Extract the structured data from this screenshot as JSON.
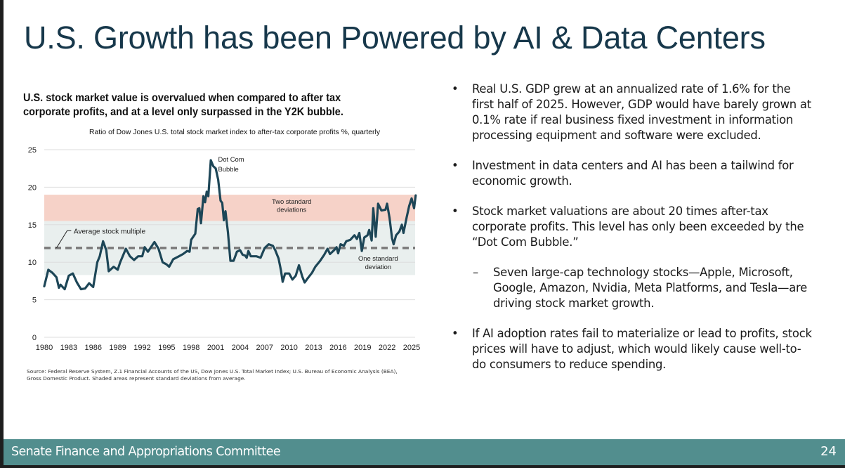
{
  "slide": {
    "title": "U.S. Growth has been Powered by AI & Data Centers",
    "footer": {
      "organization": "Senate Finance and Appropriations Committee",
      "page_number": "24"
    },
    "colors": {
      "title": "#17384b",
      "footer_bg": "#528e8e",
      "series_line": "#1d4657",
      "two_std_band": "#f6d2c8",
      "one_std_band": "#e9efee",
      "average_line": "#7a7a7a",
      "grid": "#dddddd"
    }
  },
  "chart_headline": "U.S. stock market value is overvalued when compared to after tax corporate profits, and at a level only surpassed in the Y2K bubble.",
  "chart_source": "Source: Federal Reserve System, Z.1 Financial Accounts of the US, Dow Jones U.S. Total Market Index; U.S. Bureau of Economic Analysis (BEA), Gross Domestic Product. Shaded areas represent standard deviations from average.",
  "bullets": [
    {
      "marker": "•",
      "level": 1,
      "text": "Real U.S. GDP grew at an annualized rate of 1.6% for the first half of 2025. However, GDP would have barely grown at 0.1% rate if real business fixed investment in information processing equipment and software were excluded."
    },
    {
      "marker": "•",
      "level": 1,
      "text": "Investment in data centers and AI has been a tailwind for economic growth."
    },
    {
      "marker": "•",
      "level": 1,
      "text": "Stock market valuations are about 20 times after-tax corporate profits. This level has only been exceeded by the “Dot Com Bubble.”"
    },
    {
      "marker": "–",
      "level": 2,
      "text": "Seven large-cap technology stocks—Apple, Microsoft, Google, Amazon, Nvidia, Meta Platforms, and Tesla—are driving stock market growth."
    },
    {
      "marker": "•",
      "level": 1,
      "text": "If AI adoption rates fail to materialize or lead to profits, stock prices will have to adjust, which would likely cause well-to-do consumers to reduce spending."
    }
  ],
  "chart_data": {
    "type": "line",
    "title": "Ratio of Dow Jones U.S. total stock market index to after-tax corporate profits %, quarterly",
    "xlabel": "",
    "ylabel": "",
    "xlim": [
      1980,
      2025.6
    ],
    "ylim": [
      0,
      25
    ],
    "x_ticks": [
      "1980",
      "1983",
      "1986",
      "1989",
      "1992",
      "1995",
      "1998",
      "2001",
      "2004",
      "2007",
      "2010",
      "2013",
      "2016",
      "2019",
      "2022",
      "2025"
    ],
    "y_ticks": [
      "0",
      "5",
      "10",
      "15",
      "20",
      "25"
    ],
    "grid": true,
    "average": {
      "label": "Average stock multiple",
      "value": 11.9
    },
    "bands": [
      {
        "label": "One standard deviation",
        "from": 8.3,
        "to": 15.5
      },
      {
        "label": "Two standard deviations",
        "from": 15.5,
        "to": 19.0
      }
    ],
    "annotations": [
      {
        "text": "Dot Com Bubble",
        "x": 2001.5,
        "y": 22.5
      }
    ],
    "series": [
      {
        "name": "Stock market index / after-tax corporate profits",
        "x": [
          1980.0,
          1980.5,
          1981.0,
          1981.5,
          1981.8,
          1982.0,
          1982.5,
          1983.0,
          1983.5,
          1984.0,
          1984.5,
          1985.0,
          1985.5,
          1986.0,
          1986.5,
          1986.8,
          1987.2,
          1987.6,
          1987.9,
          1988.5,
          1989.0,
          1989.3,
          1990.0,
          1990.5,
          1991.0,
          1991.5,
          1992.0,
          1992.3,
          1992.7,
          1993.5,
          1994.0,
          1994.5,
          1995.0,
          1995.3,
          1995.8,
          1996.5,
          1997.0,
          1997.5,
          1997.8,
          1998.0,
          1998.5,
          1998.8,
          1999.0,
          1999.2,
          1999.5,
          1999.7,
          1999.9,
          2000.1,
          2000.4,
          2000.7,
          2001.0,
          2001.3,
          2001.6,
          2001.8,
          2002.0,
          2002.2,
          2002.5,
          2002.8,
          2003.2,
          2003.6,
          2004.0,
          2004.3,
          2004.6,
          2004.8,
          2005.0,
          2005.3,
          2006.0,
          2006.5,
          2007.0,
          2007.5,
          2008.0,
          2008.3,
          2008.7,
          2009.0,
          2009.2,
          2009.5,
          2010.0,
          2010.4,
          2010.8,
          2011.2,
          2011.6,
          2011.9,
          2012.3,
          2012.8,
          2013.2,
          2013.8,
          2014.3,
          2014.7,
          2015.0,
          2015.5,
          2015.8,
          2016.0,
          2016.3,
          2016.7,
          2017.0,
          2017.5,
          2018.0,
          2018.3,
          2018.6,
          2018.9,
          2019.2,
          2019.6,
          2019.8,
          2020.1,
          2020.3,
          2020.6,
          2020.9,
          2021.3,
          2021.8,
          2022.0,
          2022.3,
          2022.6,
          2022.8,
          2023.1,
          2023.5,
          2023.8,
          2024.0,
          2024.4,
          2024.7,
          2025.0,
          2025.3,
          2025.5
        ],
        "values": [
          6.8,
          9.0,
          8.6,
          8.0,
          6.6,
          7.0,
          6.4,
          8.2,
          8.5,
          7.3,
          6.4,
          6.5,
          7.2,
          6.7,
          10.0,
          10.8,
          12.8,
          11.6,
          8.8,
          9.4,
          9.0,
          10.0,
          11.8,
          10.8,
          10.3,
          10.8,
          10.8,
          12.0,
          11.4,
          12.7,
          11.8,
          10.0,
          9.7,
          9.4,
          10.4,
          10.8,
          11.1,
          11.5,
          11.4,
          13.0,
          13.8,
          17.1,
          17.2,
          15.2,
          18.8,
          18.0,
          19.4,
          18.8,
          23.6,
          22.8,
          22.5,
          21.0,
          18.2,
          17.9,
          15.6,
          16.8,
          14.0,
          10.2,
          10.2,
          11.4,
          11.6,
          11.0,
          10.9,
          10.6,
          11.5,
          10.8,
          10.8,
          10.6,
          11.9,
          12.4,
          12.2,
          11.6,
          10.5,
          8.9,
          7.4,
          8.5,
          8.5,
          7.7,
          8.2,
          9.6,
          8.1,
          7.3,
          7.9,
          8.6,
          9.4,
          10.2,
          11.0,
          11.8,
          11.1,
          11.6,
          12.0,
          11.2,
          12.4,
          12.2,
          12.8,
          13.0,
          13.6,
          13.1,
          13.9,
          11.5,
          13.3,
          13.6,
          14.3,
          12.9,
          17.2,
          13.4,
          17.8,
          16.9,
          17.0,
          17.8,
          15.9,
          13.2,
          12.4,
          13.6,
          14.1,
          15.0,
          13.9,
          16.0,
          17.5,
          18.5,
          17.2,
          18.9
        ]
      }
    ]
  }
}
